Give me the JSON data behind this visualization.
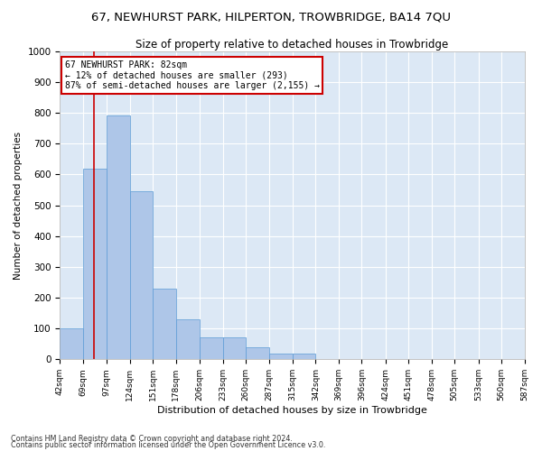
{
  "title": "67, NEWHURST PARK, HILPERTON, TROWBRIDGE, BA14 7QU",
  "subtitle": "Size of property relative to detached houses in Trowbridge",
  "xlabel": "Distribution of detached houses by size in Trowbridge",
  "ylabel": "Number of detached properties",
  "footer1": "Contains HM Land Registry data © Crown copyright and database right 2024.",
  "footer2": "Contains public sector information licensed under the Open Government Licence v3.0.",
  "annotation_title": "67 NEWHURST PARK: 82sqm",
  "annotation_line1": "← 12% of detached houses are smaller (293)",
  "annotation_line2": "87% of semi-detached houses are larger (2,155) →",
  "property_size": 82,
  "bar_color": "#aec6e8",
  "bar_edge_color": "#5b9bd5",
  "red_line_color": "#cc0000",
  "background_color": "#dce8f5",
  "annotation_box_color": "#ffffff",
  "annotation_box_edge": "#cc0000",
  "bin_edges": [
    42,
    69,
    97,
    124,
    151,
    178,
    206,
    233,
    260,
    287,
    315,
    342,
    369,
    396,
    424,
    451,
    478,
    505,
    533,
    560,
    587
  ],
  "bar_heights": [
    100,
    620,
    790,
    545,
    230,
    130,
    70,
    70,
    40,
    20,
    20,
    0,
    0,
    0,
    0,
    0,
    0,
    0,
    0,
    0
  ],
  "ylim": [
    0,
    1000
  ],
  "yticks": [
    0,
    100,
    200,
    300,
    400,
    500,
    600,
    700,
    800,
    900,
    1000
  ]
}
